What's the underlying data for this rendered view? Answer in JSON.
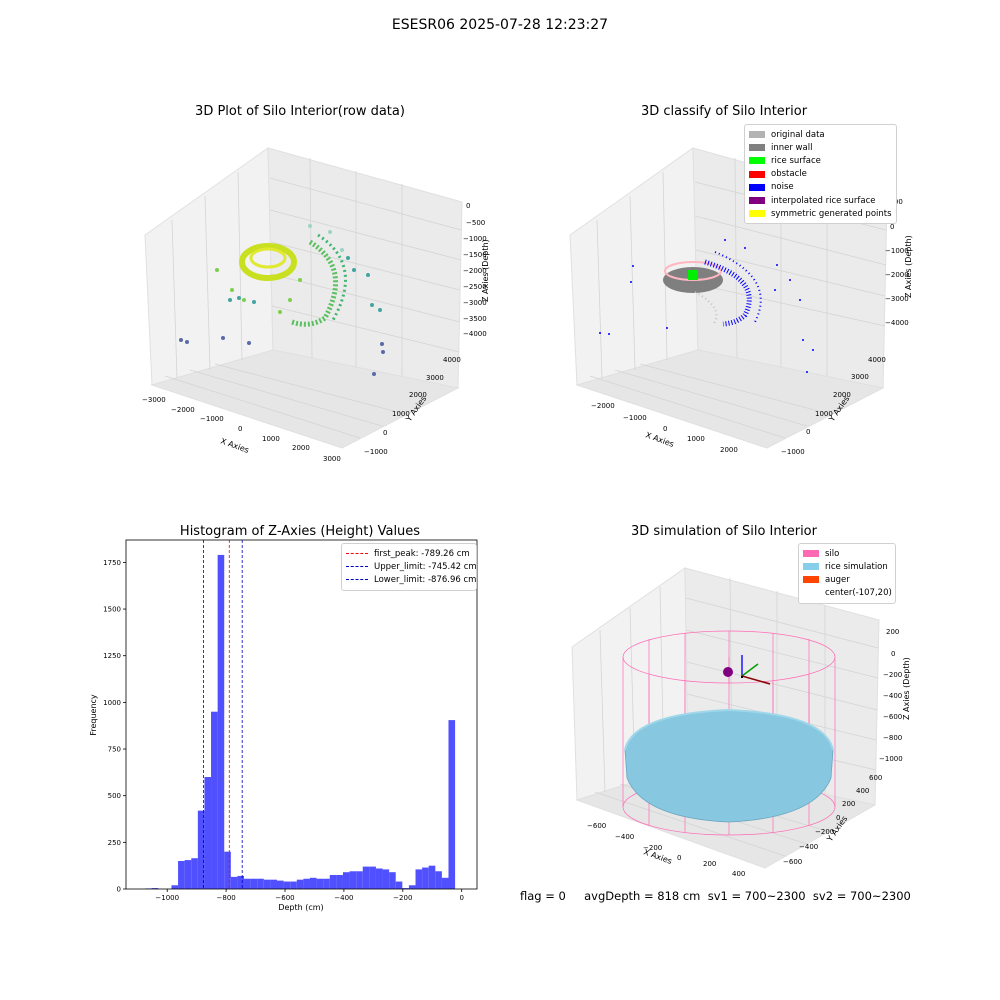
{
  "figure": {
    "suptitle": "ESESR06 2025-07-28 12:23:27",
    "footer": "flag = 0     avgDepth = 818 cm  sv1 = 700~2300  sv2 = 700~2300"
  },
  "chart_data": [
    {
      "type": "scatter",
      "projection": "3d",
      "title": "3D Plot of Silo Interior(row data)",
      "xlabel": "X Axies",
      "ylabel": "Y Axies",
      "zlabel": "Z Axies (Depth)",
      "x_ticks": [
        "−3000",
        "−2000",
        "−1000",
        "0",
        "1000",
        "2000",
        "3000"
      ],
      "y_ticks": [
        "−1000",
        "0",
        "1000",
        "2000",
        "3000",
        "4000"
      ],
      "z_ticks": [
        "0",
        "−500",
        "−1000",
        "−1500",
        "−2000",
        "−2500",
        "−3000",
        "−3500",
        "−4000"
      ],
      "colormap": "viridis (by depth)",
      "grid": true
    },
    {
      "type": "scatter",
      "projection": "3d",
      "title": "3D classify of Silo Interior",
      "xlabel": "X Axies",
      "ylabel": "Y Axies",
      "zlabel": "Z Axies (Depth)",
      "x_ticks": [
        "−2000",
        "−1000",
        "0",
        "1000",
        "2000"
      ],
      "y_ticks": [
        "−1000",
        "0",
        "1000",
        "2000",
        "3000",
        "4000"
      ],
      "z_ticks": [
        "1000",
        "0",
        "−1000",
        "−2000",
        "−3000",
        "−4000"
      ],
      "legend": [
        {
          "label": "original data",
          "color": "#b3b3b3"
        },
        {
          "label": "inner wall",
          "color": "#808080"
        },
        {
          "label": "rice surface",
          "color": "#00ff00"
        },
        {
          "label": "obstacle",
          "color": "#ff0000"
        },
        {
          "label": "noise",
          "color": "#0000ff"
        },
        {
          "label": "interpolated rice surface",
          "color": "#800080"
        },
        {
          "label": "symmetric generated points",
          "color": "#ffff00"
        }
      ],
      "legend_position": "top-right",
      "grid": true
    },
    {
      "type": "bar",
      "title": "Histogram of Z-Axies (Height) Values",
      "xlabel": "Depth (cm)",
      "ylabel": "Frequency",
      "xlim": [
        -1140,
        52
      ],
      "ylim": [
        0,
        1870
      ],
      "x_ticks": [
        -1000,
        -800,
        -600,
        -400,
        -200,
        0
      ],
      "x_tick_labels": [
        "−1000",
        "−800",
        "−600",
        "−400",
        "−200",
        "0"
      ],
      "y_ticks": [
        0,
        250,
        500,
        750,
        1000,
        1250,
        1500,
        1750
      ],
      "bar_color": "#4c4cff",
      "bin_width": 22.4,
      "bin_start": -1120,
      "values": [
        0,
        0,
        3,
        5,
        0,
        0,
        20,
        150,
        155,
        165,
        420,
        600,
        950,
        1790,
        200,
        65,
        70,
        55,
        55,
        55,
        50,
        50,
        45,
        40,
        40,
        50,
        55,
        60,
        55,
        55,
        75,
        75,
        90,
        95,
        95,
        120,
        120,
        110,
        105,
        90,
        40,
        5,
        20,
        105,
        115,
        125,
        95,
        60,
        905
      ],
      "lines": [
        {
          "label": "first_peak: -789.26 cm",
          "x": -789.26,
          "color": "#ff0000"
        },
        {
          "label": "Upper_limit: -745.42 cm",
          "x": -745.42,
          "color": "#0000c0"
        },
        {
          "label": "Lower_limit: -876.96 cm",
          "x": -876.96,
          "color": "#0000c0"
        }
      ],
      "legend_position": "top-right"
    },
    {
      "type": "surface",
      "projection": "3d",
      "title": "3D simulation of Silo Interior",
      "xlabel": "X Axies",
      "ylabel": "Y Axies",
      "zlabel": "Z Axies (Depth)",
      "x_ticks": [
        "−600",
        "−400",
        "−200",
        "0",
        "200",
        "400"
      ],
      "y_ticks": [
        "−600",
        "−400",
        "−200",
        "0",
        "200",
        "400",
        "600"
      ],
      "z_ticks": [
        "200",
        "0",
        "−200",
        "−400",
        "−600",
        "−800",
        "−1000"
      ],
      "legend": [
        {
          "label": "silo",
          "color": "#ff69b4"
        },
        {
          "label": "rice simulation",
          "color": "#87ceeb"
        },
        {
          "label": "auger",
          "color": "#ff4500"
        },
        {
          "label": "center(-107,20)",
          "color": null
        }
      ],
      "legend_position": "top-right"
    }
  ]
}
